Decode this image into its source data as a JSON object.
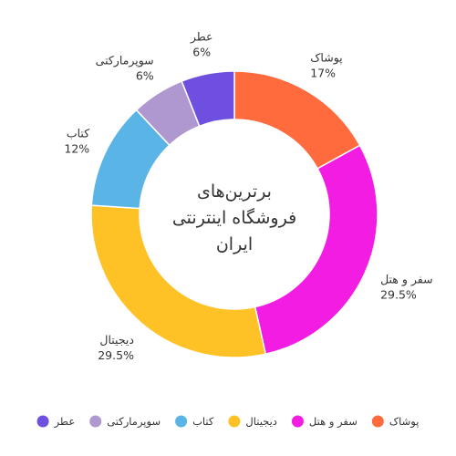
{
  "chart_data": {
    "type": "pie",
    "variant": "donut",
    "title_lines": [
      "برترین‌های",
      "فروشگاه اینترنتی",
      "ایران"
    ],
    "slices": [
      {
        "label": "پوشاک",
        "value": 17,
        "value_label": "17%",
        "color": "#FF6B3D"
      },
      {
        "label": "سفر و هتل",
        "value": 29.5,
        "value_label": "29.5%",
        "color": "#F21CE3"
      },
      {
        "label": "دیجیتال",
        "value": 29.5,
        "value_label": "29.5%",
        "color": "#FFC226"
      },
      {
        "label": "کتاب",
        "value": 12,
        "value_label": "12%",
        "color": "#5AB4E5"
      },
      {
        "label": "سوپرمارکتی",
        "value": 6,
        "value_label": "6%",
        "color": "#AF98CF"
      },
      {
        "label": "عطر",
        "value": 6,
        "value_label": "6%",
        "color": "#6E4FDF"
      }
    ],
    "legend_position": "bottom"
  }
}
